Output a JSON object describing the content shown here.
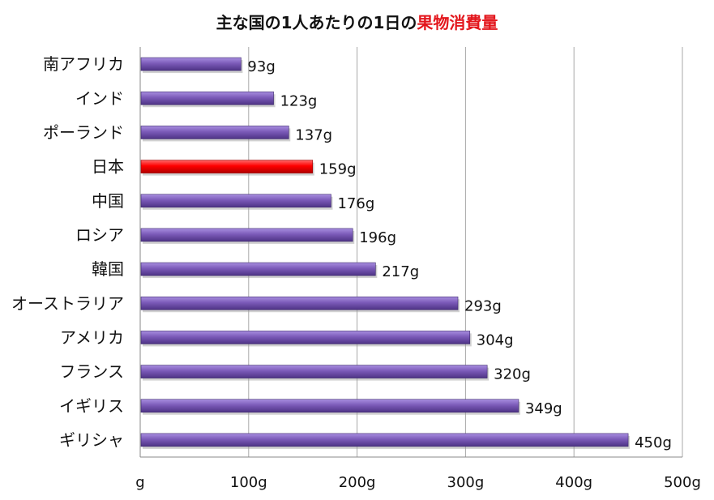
{
  "chart_data": {
    "type": "bar",
    "orientation": "horizontal",
    "title_main": "主な国の1人あたりの1日の",
    "title_highlight": "果物消費量",
    "categories": [
      "南アフリカ",
      "インド",
      "ポーランド",
      "日本",
      "中国",
      "ロシア",
      "韓国",
      "オーストラリア",
      "アメリカ",
      "フランス",
      "イギリス",
      "ギリシャ"
    ],
    "values": [
      93,
      123,
      137,
      159,
      176,
      196,
      217,
      293,
      304,
      320,
      349,
      450
    ],
    "data_labels": [
      "93g",
      "123g",
      "137g",
      "159g",
      "176g",
      "196g",
      "217g",
      "293g",
      "304g",
      "320g",
      "349g",
      "450g"
    ],
    "highlight_category": "日本",
    "x_ticks": [
      0,
      100,
      200,
      300,
      400,
      500
    ],
    "x_tick_labels": [
      "g",
      "100g",
      "200g",
      "300g",
      "400g",
      "500g"
    ],
    "xlim": [
      0,
      500
    ],
    "grid": true,
    "colors": {
      "bar": "#7b5ab8",
      "highlight": "#ff0000",
      "title_highlight": "#e3161c"
    }
  }
}
